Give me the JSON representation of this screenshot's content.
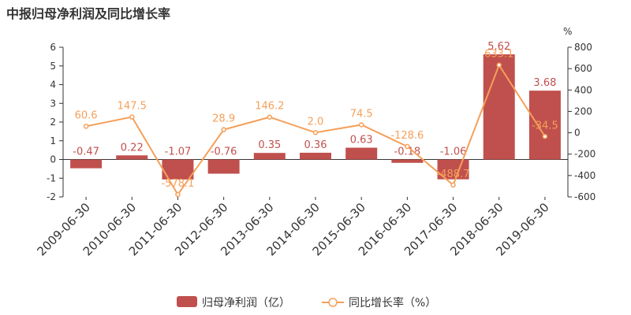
{
  "chart_data": {
    "type": "bar",
    "title": "中报归母净利润及同比增长率",
    "categories": [
      "2009-06-30",
      "2010-06-30",
      "2011-06-30",
      "2012-06-30",
      "2013-06-30",
      "2014-06-30",
      "2015-06-30",
      "2016-06-30",
      "2017-06-30",
      "2018-06-30",
      "2019-06-30"
    ],
    "series": [
      {
        "name": "归母净利润（亿）",
        "kind": "bar",
        "axis": "left",
        "color": "#c0504d",
        "values": [
          -0.47,
          0.22,
          -1.07,
          -0.76,
          0.35,
          0.36,
          0.63,
          -0.18,
          -1.06,
          5.62,
          3.68
        ],
        "labels": [
          "-0.47",
          "0.22",
          "-1.07",
          "-0.76",
          "0.35",
          "0.36",
          "0.63",
          "-0.18",
          "-1.06",
          "5.62",
          "3.68"
        ]
      },
      {
        "name": "同比增长率（%）",
        "kind": "line",
        "axis": "right",
        "color": "#f5a05a",
        "values": [
          60.6,
          147.5,
          -578.1,
          28.9,
          146.2,
          2.0,
          74.5,
          -128.6,
          -488.7,
          633.1,
          -34.5
        ],
        "labels": [
          "60.6",
          "147.5",
          "-578.1",
          "28.9",
          "146.2",
          "2.0",
          "74.5",
          "-128.6",
          "-488.7",
          "633.1",
          "-34.5"
        ]
      }
    ],
    "y_left": {
      "ylim": [
        -2,
        6
      ],
      "ticks": [
        "-2",
        "-1",
        "0",
        "1",
        "2",
        "3",
        "4",
        "5",
        "6"
      ]
    },
    "y_right": {
      "ylim": [
        -600,
        800
      ],
      "unit": "%",
      "ticks": [
        "-600",
        "-400",
        "-200",
        "0",
        "200",
        "400",
        "600",
        "800"
      ]
    },
    "grid": false,
    "legend_position": "bottom-center"
  }
}
